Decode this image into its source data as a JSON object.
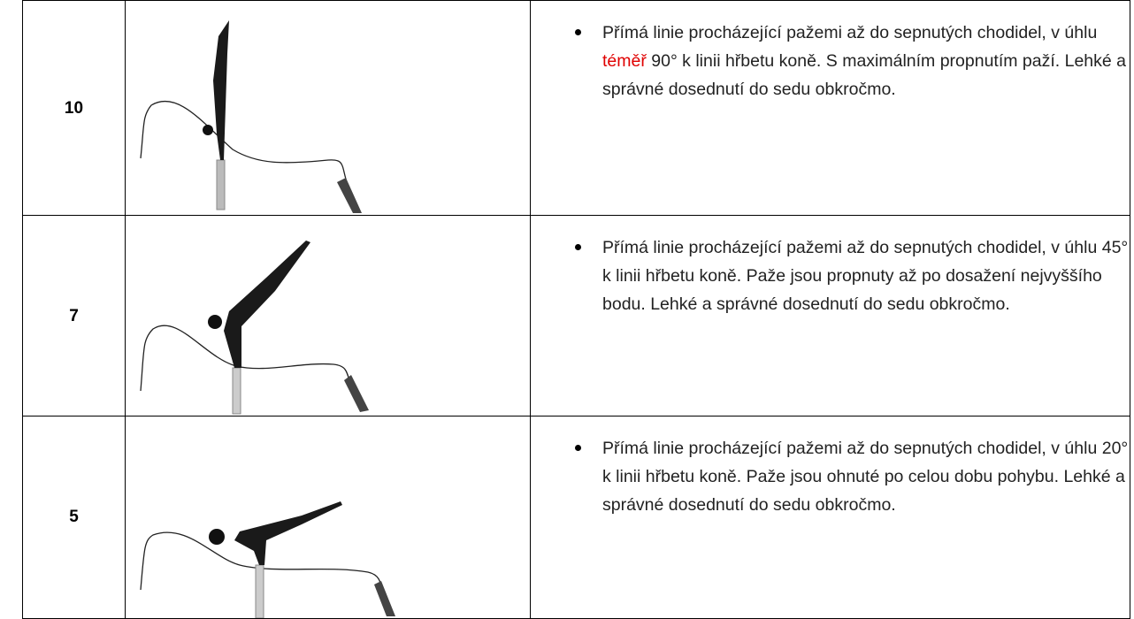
{
  "table": {
    "rows": [
      {
        "score": 10,
        "text": [
          "Přímá linie procházející pažemi až do sepnutých chodidel, v úhlu ",
          "téměř",
          " 90° k linii hřbetu koně. S maximálním propnutím paží. Lehké a správné dosednutí do sedu obkročmo."
        ]
      },
      {
        "score": 7,
        "text": "Přímá linie procházející pažemi až do sepnutých chodidel, v úhlu 45° k linii hřbetu koně. Paže jsou propnuty až po dosažení nejvyššího bodu. Lehké a správné dosednutí do sedu obkročmo."
      },
      {
        "score": 5,
        "text": "Přímá linie procházející pažemi až do sepnutých chodidel, v úhlu 20° k linii hřbetu koně. Paže jsou ohnuté po celou dobu pohybu. Lehké a správné dosednutí do sedu obkročmo."
      }
    ]
  }
}
